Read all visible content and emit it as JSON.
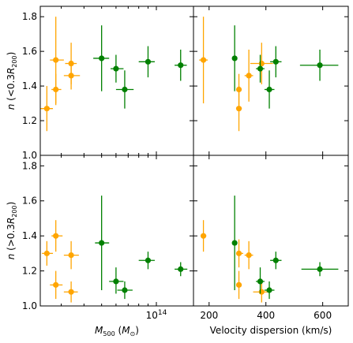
{
  "chart_data": [
    {
      "panel": "top-left",
      "type": "scatter",
      "xscale": "log",
      "xlim": [
        23000000000000,
        160000000000000
      ],
      "ylim": [
        1.0,
        1.86
      ],
      "yticks": [
        1.0,
        1.2,
        1.4,
        1.6,
        1.8
      ],
      "xticks": [
        {
          "value": 100000000000000,
          "label": "10^14"
        }
      ],
      "ylabel": "n (<0.3R_200)",
      "xlabel": "",
      "series": [
        {
          "color": "#ffa500",
          "points": [
            {
              "x": 25000000000000,
              "y": 1.27,
              "xlo": 23000000000000,
              "xhi": 27000000000000,
              "ylo": 1.14,
              "yhi": 1.4
            },
            {
              "x": 28000000000000,
              "y": 1.38,
              "xlo": 26500000000000,
              "xhi": 30000000000000,
              "ylo": 1.29,
              "yhi": 1.47
            },
            {
              "x": 28000000000000,
              "y": 1.55,
              "xlo": 26000000000000,
              "xhi": 31000000000000,
              "ylo": 1.3,
              "yhi": 1.8
            },
            {
              "x": 34000000000000,
              "y": 1.46,
              "xlo": 31000000000000,
              "xhi": 38000000000000,
              "ylo": 1.38,
              "yhi": 1.54
            },
            {
              "x": 34000000000000,
              "y": 1.53,
              "xlo": 31500000000000,
              "xhi": 36500000000000,
              "ylo": 1.41,
              "yhi": 1.65
            }
          ]
        },
        {
          "color": "#008000",
          "points": [
            {
              "x": 50000000000000,
              "y": 1.56,
              "xlo": 45000000000000,
              "xhi": 55000000000000,
              "ylo": 1.37,
              "yhi": 1.75
            },
            {
              "x": 60000000000000,
              "y": 1.5,
              "xlo": 56000000000000,
              "xhi": 66000000000000,
              "ylo": 1.42,
              "yhi": 1.58
            },
            {
              "x": 67000000000000,
              "y": 1.38,
              "xlo": 60000000000000,
              "xhi": 75000000000000,
              "ylo": 1.27,
              "yhi": 1.49
            },
            {
              "x": 90000000000000,
              "y": 1.54,
              "xlo": 80000000000000,
              "xhi": 98000000000000,
              "ylo": 1.45,
              "yhi": 1.63
            },
            {
              "x": 136000000000000,
              "y": 1.52,
              "xlo": 126000000000000,
              "xhi": 147000000000000,
              "ylo": 1.43,
              "yhi": 1.61
            }
          ]
        }
      ]
    },
    {
      "panel": "top-right",
      "type": "scatter",
      "xlim": [
        145,
        690
      ],
      "ylim": [
        1.0,
        1.86
      ],
      "xticks": [
        200,
        400,
        600
      ],
      "yticks": [
        1.0,
        1.2,
        1.4,
        1.6,
        1.8
      ],
      "series": [
        {
          "color": "#ffa500",
          "points": [
            {
              "x": 180,
              "y": 1.55,
              "xlo": 165,
              "xhi": 195,
              "ylo": 1.3,
              "yhi": 1.8
            },
            {
              "x": 305,
              "y": 1.38,
              "xlo": 300,
              "xhi": 310,
              "ylo": 1.29,
              "yhi": 1.47
            },
            {
              "x": 305,
              "y": 1.27,
              "xlo": 300,
              "xhi": 315,
              "ylo": 1.14,
              "yhi": 1.4
            },
            {
              "x": 340,
              "y": 1.46,
              "xlo": 325,
              "xhi": 355,
              "ylo": 1.31,
              "yhi": 1.61
            },
            {
              "x": 385,
              "y": 1.53,
              "xlo": 345,
              "xhi": 425,
              "ylo": 1.41,
              "yhi": 1.65
            }
          ]
        },
        {
          "color": "#008000",
          "points": [
            {
              "x": 290,
              "y": 1.56,
              "xlo": 285,
              "xhi": 295,
              "ylo": 1.37,
              "yhi": 1.75
            },
            {
              "x": 380,
              "y": 1.5,
              "xlo": 365,
              "xhi": 395,
              "ylo": 1.42,
              "yhi": 1.58
            },
            {
              "x": 412,
              "y": 1.38,
              "xlo": 395,
              "xhi": 430,
              "ylo": 1.27,
              "yhi": 1.49
            },
            {
              "x": 435,
              "y": 1.54,
              "xlo": 415,
              "xhi": 455,
              "ylo": 1.45,
              "yhi": 1.63
            },
            {
              "x": 590,
              "y": 1.52,
              "xlo": 520,
              "xhi": 655,
              "ylo": 1.43,
              "yhi": 1.61
            }
          ]
        }
      ]
    },
    {
      "panel": "bottom-left",
      "type": "scatter",
      "xscale": "log",
      "xlim": [
        23000000000000,
        160000000000000
      ],
      "ylim": [
        1.0,
        1.86
      ],
      "yticks": [
        1.0,
        1.2,
        1.4,
        1.6,
        1.8
      ],
      "xticks": [
        {
          "value": 100000000000000,
          "label": "10^14"
        }
      ],
      "ylabel": "n (>0.3R_200)",
      "xlabel": "M_500 (M_⊙)",
      "series": [
        {
          "color": "#ffa500",
          "points": [
            {
              "x": 25000000000000,
              "y": 1.3,
              "xlo": 23500000000000,
              "xhi": 27000000000000,
              "ylo": 1.23,
              "yhi": 1.37
            },
            {
              "x": 28000000000000,
              "y": 1.4,
              "xlo": 26500000000000,
              "xhi": 30500000000000,
              "ylo": 1.31,
              "yhi": 1.49
            },
            {
              "x": 28000000000000,
              "y": 1.12,
              "xlo": 26000000000000,
              "xhi": 30500000000000,
              "ylo": 1.04,
              "yhi": 1.2
            },
            {
              "x": 34000000000000,
              "y": 1.29,
              "xlo": 31000000000000,
              "xhi": 37500000000000,
              "ylo": 1.21,
              "yhi": 1.37
            },
            {
              "x": 34000000000000,
              "y": 1.08,
              "xlo": 31000000000000,
              "xhi": 37000000000000,
              "ylo": 1.02,
              "yhi": 1.14
            }
          ]
        },
        {
          "color": "#008000",
          "points": [
            {
              "x": 50000000000000,
              "y": 1.36,
              "xlo": 46000000000000,
              "xhi": 55000000000000,
              "ylo": 1.09,
              "yhi": 1.63
            },
            {
              "x": 60000000000000,
              "y": 1.14,
              "xlo": 55000000000000,
              "xhi": 66000000000000,
              "ylo": 1.07,
              "yhi": 1.22
            },
            {
              "x": 67000000000000,
              "y": 1.09,
              "xlo": 61000000000000,
              "xhi": 74000000000000,
              "ylo": 1.04,
              "yhi": 1.14
            },
            {
              "x": 90000000000000,
              "y": 1.26,
              "xlo": 80000000000000,
              "xhi": 98000000000000,
              "ylo": 1.21,
              "yhi": 1.31
            },
            {
              "x": 136000000000000,
              "y": 1.21,
              "xlo": 126000000000000,
              "xhi": 148000000000000,
              "ylo": 1.17,
              "yhi": 1.25
            }
          ]
        }
      ]
    },
    {
      "panel": "bottom-right",
      "type": "scatter",
      "xlim": [
        145,
        690
      ],
      "ylim": [
        1.0,
        1.86
      ],
      "xticks": [
        200,
        400,
        600
      ],
      "yticks": [
        1.0,
        1.2,
        1.4,
        1.6,
        1.8
      ],
      "xlabel": "Velocity dispersion (km/s)",
      "series": [
        {
          "color": "#ffa500",
          "points": [
            {
              "x": 180,
              "y": 1.4,
              "xlo": 170,
              "xhi": 190,
              "ylo": 1.31,
              "yhi": 1.49
            },
            {
              "x": 305,
              "y": 1.3,
              "xlo": 295,
              "xhi": 320,
              "ylo": 1.22,
              "yhi": 1.38
            },
            {
              "x": 305,
              "y": 1.12,
              "xlo": 300,
              "xhi": 310,
              "ylo": 1.04,
              "yhi": 1.2
            },
            {
              "x": 340,
              "y": 1.29,
              "xlo": 325,
              "xhi": 355,
              "ylo": 1.21,
              "yhi": 1.37
            },
            {
              "x": 385,
              "y": 1.08,
              "xlo": 355,
              "xhi": 410,
              "ylo": 1.02,
              "yhi": 1.14
            }
          ]
        },
        {
          "color": "#008000",
          "points": [
            {
              "x": 290,
              "y": 1.36,
              "xlo": 285,
              "xhi": 295,
              "ylo": 1.09,
              "yhi": 1.63
            },
            {
              "x": 380,
              "y": 1.14,
              "xlo": 365,
              "xhi": 395,
              "ylo": 1.07,
              "yhi": 1.22
            },
            {
              "x": 412,
              "y": 1.09,
              "xlo": 395,
              "xhi": 430,
              "ylo": 1.04,
              "yhi": 1.14
            },
            {
              "x": 435,
              "y": 1.26,
              "xlo": 415,
              "xhi": 455,
              "ylo": 1.21,
              "yhi": 1.31
            },
            {
              "x": 590,
              "y": 1.21,
              "xlo": 525,
              "xhi": 655,
              "ylo": 1.17,
              "yhi": 1.25
            }
          ]
        }
      ]
    }
  ]
}
